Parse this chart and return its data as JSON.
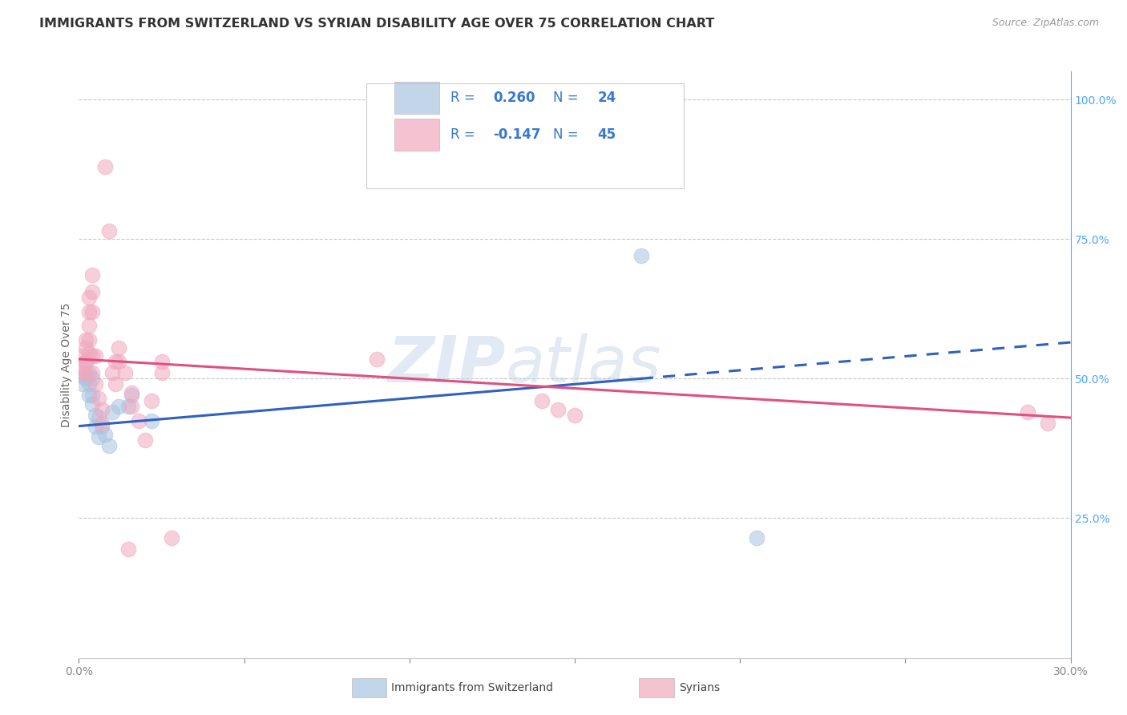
{
  "title": "IMMIGRANTS FROM SWITZERLAND VS SYRIAN DISABILITY AGE OVER 75 CORRELATION CHART",
  "source": "Source: ZipAtlas.com",
  "ylabel": "Disability Age Over 75",
  "xmin": 0.0,
  "xmax": 0.3,
  "ymin": 0.0,
  "ymax": 1.05,
  "watermark_zip": "ZIP",
  "watermark_atlas": "atlas",
  "blue_scatter": [
    [
      0.001,
      0.505
    ],
    [
      0.001,
      0.49
    ],
    [
      0.002,
      0.53
    ],
    [
      0.002,
      0.5
    ],
    [
      0.003,
      0.51
    ],
    [
      0.003,
      0.49
    ],
    [
      0.003,
      0.47
    ],
    [
      0.004,
      0.5
    ],
    [
      0.004,
      0.47
    ],
    [
      0.004,
      0.455
    ],
    [
      0.005,
      0.435
    ],
    [
      0.005,
      0.415
    ],
    [
      0.006,
      0.43
    ],
    [
      0.006,
      0.395
    ],
    [
      0.007,
      0.415
    ],
    [
      0.008,
      0.4
    ],
    [
      0.009,
      0.38
    ],
    [
      0.01,
      0.44
    ],
    [
      0.012,
      0.45
    ],
    [
      0.015,
      0.45
    ],
    [
      0.016,
      0.47
    ],
    [
      0.022,
      0.425
    ],
    [
      0.17,
      0.72
    ],
    [
      0.205,
      0.215
    ]
  ],
  "pink_scatter": [
    [
      0.001,
      0.54
    ],
    [
      0.001,
      0.52
    ],
    [
      0.001,
      0.51
    ],
    [
      0.002,
      0.57
    ],
    [
      0.002,
      0.555
    ],
    [
      0.002,
      0.53
    ],
    [
      0.002,
      0.51
    ],
    [
      0.003,
      0.645
    ],
    [
      0.003,
      0.62
    ],
    [
      0.003,
      0.595
    ],
    [
      0.003,
      0.57
    ],
    [
      0.003,
      0.545
    ],
    [
      0.004,
      0.685
    ],
    [
      0.004,
      0.655
    ],
    [
      0.004,
      0.62
    ],
    [
      0.004,
      0.54
    ],
    [
      0.004,
      0.51
    ],
    [
      0.005,
      0.54
    ],
    [
      0.005,
      0.49
    ],
    [
      0.006,
      0.465
    ],
    [
      0.007,
      0.445
    ],
    [
      0.007,
      0.42
    ],
    [
      0.008,
      0.88
    ],
    [
      0.009,
      0.765
    ],
    [
      0.01,
      0.51
    ],
    [
      0.011,
      0.53
    ],
    [
      0.011,
      0.49
    ],
    [
      0.012,
      0.555
    ],
    [
      0.012,
      0.53
    ],
    [
      0.014,
      0.51
    ],
    [
      0.015,
      0.195
    ],
    [
      0.016,
      0.475
    ],
    [
      0.016,
      0.45
    ],
    [
      0.018,
      0.425
    ],
    [
      0.02,
      0.39
    ],
    [
      0.022,
      0.46
    ],
    [
      0.025,
      0.53
    ],
    [
      0.025,
      0.51
    ],
    [
      0.028,
      0.215
    ],
    [
      0.09,
      0.535
    ],
    [
      0.14,
      0.46
    ],
    [
      0.145,
      0.445
    ],
    [
      0.15,
      0.435
    ],
    [
      0.287,
      0.44
    ],
    [
      0.293,
      0.42
    ]
  ],
  "blue_line_x": [
    0.0,
    0.3
  ],
  "blue_line_y": [
    0.415,
    0.565
  ],
  "blue_line_solid_end": 0.17,
  "pink_line_x": [
    0.0,
    0.3
  ],
  "pink_line_y": [
    0.535,
    0.43
  ],
  "title_fontsize": 11.5,
  "legend_fontsize": 12,
  "scatter_size": 180,
  "blue_color": "#a8c4e0",
  "pink_color": "#f0a8be",
  "blue_line_color": "#3060c0",
  "pink_line_color": "#e05080",
  "legend_text_color": "#3878d0",
  "right_axis_color": "#4da6ff",
  "grid_color": "#c8c8c8",
  "axis_tick_color": "#888888"
}
